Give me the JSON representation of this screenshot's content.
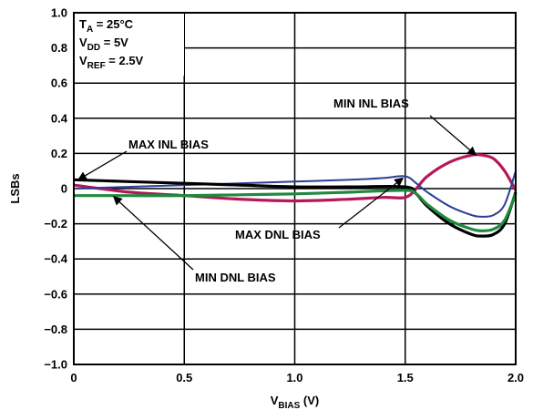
{
  "chart_data": {
    "type": "line",
    "xlabel_main": "V",
    "xlabel_sub": "BIAS",
    "xlabel_unit": " (V)",
    "ylabel": "LSBs",
    "xlim": [
      0,
      2.0
    ],
    "ylim": [
      -1.0,
      1.0
    ],
    "x_ticks": [
      0,
      0.5,
      1.0,
      1.5,
      2.0
    ],
    "x_tick_labels": [
      "0",
      "0.5",
      "1.0",
      "1.5",
      "2.0"
    ],
    "y_ticks": [
      1.0,
      0.8,
      0.6,
      0.4,
      0.2,
      0,
      -0.2,
      -0.4,
      -0.6,
      -0.8,
      -1.0
    ],
    "y_tick_labels": [
      "1.0",
      "0.8",
      "0.6",
      "0.4",
      "0.2",
      "0",
      "−0.2",
      "−0.4",
      "−0.6",
      "−0.8",
      "−1.0"
    ],
    "grid": true,
    "conditions": [
      {
        "main": "T",
        "sub": "A",
        "rest": " = 25°C"
      },
      {
        "main": "V",
        "sub": "DD",
        "rest": " = 5V"
      },
      {
        "main": "V",
        "sub": "REF",
        "rest": " = 2.5V"
      }
    ],
    "series": [
      {
        "name": "MIN INL BIAS",
        "color": "#b5175a",
        "x": [
          0,
          0.25,
          0.5,
          0.75,
          1.0,
          1.25,
          1.4,
          1.5,
          1.55,
          1.6,
          1.7,
          1.8,
          1.85,
          1.9,
          1.95,
          2.0
        ],
        "y": [
          0.02,
          -0.02,
          -0.04,
          -0.06,
          -0.07,
          -0.06,
          -0.05,
          -0.05,
          0.0,
          0.07,
          0.15,
          0.19,
          0.19,
          0.17,
          0.1,
          -0.01
        ]
      },
      {
        "name": "MAX DNL BIAS",
        "color": "#2b3f96",
        "x": [
          0,
          0.25,
          0.5,
          0.75,
          1.0,
          1.25,
          1.4,
          1.5,
          1.55,
          1.6,
          1.7,
          1.8,
          1.85,
          1.9,
          1.95,
          2.0
        ],
        "y": [
          0.0,
          0.01,
          0.02,
          0.03,
          0.04,
          0.05,
          0.06,
          0.07,
          0.03,
          -0.02,
          -0.1,
          -0.15,
          -0.16,
          -0.15,
          -0.09,
          0.1
        ]
      },
      {
        "name": "MAX INL BIAS",
        "color": "#000000",
        "x": [
          0,
          0.25,
          0.5,
          0.75,
          1.0,
          1.25,
          1.5,
          1.55,
          1.6,
          1.7,
          1.8,
          1.85,
          1.9,
          1.95,
          2.0
        ],
        "y": [
          0.05,
          0.04,
          0.03,
          0.02,
          0.01,
          0.01,
          0.01,
          -0.03,
          -0.1,
          -0.2,
          -0.26,
          -0.27,
          -0.26,
          -0.2,
          -0.02
        ]
      },
      {
        "name": "MIN DNL BIAS",
        "color": "#1e8a3e",
        "x": [
          0,
          0.25,
          0.5,
          0.75,
          1.0,
          1.25,
          1.5,
          1.55,
          1.6,
          1.7,
          1.8,
          1.85,
          1.9,
          1.95,
          2.0
        ],
        "y": [
          -0.04,
          -0.04,
          -0.04,
          -0.035,
          -0.03,
          -0.02,
          -0.01,
          -0.03,
          -0.09,
          -0.18,
          -0.23,
          -0.24,
          -0.23,
          -0.18,
          -0.03
        ]
      }
    ],
    "annotations": [
      {
        "text": "MIN INL BIAS",
        "target": [
          1.82,
          0.19
        ]
      },
      {
        "text": "MAX INL BIAS",
        "target": [
          0.02,
          0.05
        ]
      },
      {
        "text": "MAX DNL BIAS",
        "target": [
          1.49,
          0.06
        ]
      },
      {
        "text": "MIN DNL BIAS",
        "target": [
          0.18,
          -0.045
        ]
      }
    ]
  }
}
